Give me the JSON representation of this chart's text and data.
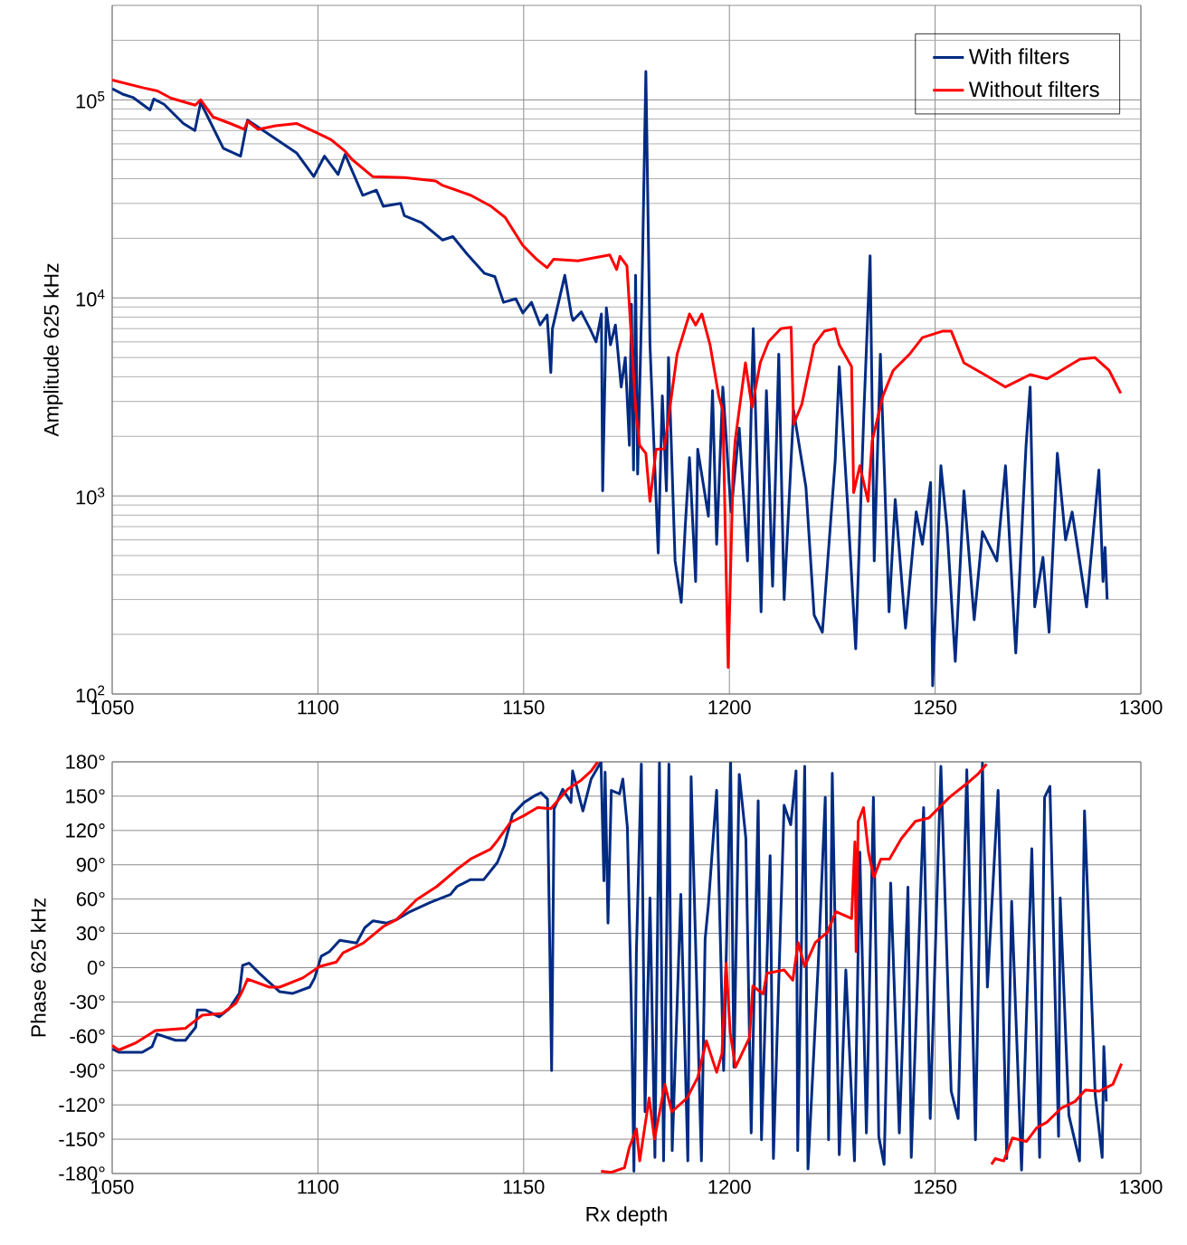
{
  "chart_data": [
    {
      "type": "line",
      "ylabel": "Amplitude 625 kHz",
      "log": "y",
      "grid": true,
      "legend": "top right",
      "xlim": [
        1050,
        1300
      ],
      "xticks": [
        1050,
        1100,
        1150,
        1200,
        1250,
        1300
      ],
      "ylim": [
        100,
        300000
      ],
      "yticks": [
        {
          "value": 100,
          "label": "10$^{2}$"
        },
        {
          "value": 1000,
          "label": "10$^{3}$"
        },
        {
          "value": 10000,
          "label": "10$^{4}$"
        },
        {
          "value": 100000,
          "label": "10$^{5}$"
        }
      ],
      "series": [
        {
          "name": "With filters",
          "color": "#002b82",
          "x": [
            1050,
            1052.5,
            1055,
            1059.2,
            1060.1,
            1062.6,
            1067.3,
            1070.1,
            1071.5,
            1077,
            1081.2,
            1082.9,
            1087.2,
            1094.8,
            1099,
            1101.6,
            1104.9,
            1106.6,
            1110.9,
            1114.2,
            1115.9,
            1120.1,
            1121,
            1125.2,
            1130.3,
            1132.8,
            1136.2,
            1140.5,
            1143,
            1145.1,
            1148.1,
            1149.8,
            1151.9,
            1154,
            1155.7,
            1156.6,
            1157,
            1160,
            1161.6,
            1162,
            1164,
            1166.1,
            1167.6,
            1168.9,
            1169.2,
            1170.1,
            1171.1,
            1172.3,
            1173.7,
            1174.7,
            1175.7,
            1176.2,
            1176.7,
            1177.2,
            1177.7,
            1178.7,
            1179.7,
            1180.7,
            1182.7,
            1183.7,
            1184.7,
            1185.2,
            1186.8,
            1188.3,
            1189.3,
            1190.3,
            1191.8,
            1192.3,
            1194.9,
            1195.9,
            1196.9,
            1198.4,
            1200.4,
            1202.4,
            1204.4,
            1205.8,
            1207.7,
            1209,
            1210.5,
            1212,
            1213.3,
            1215.6,
            1218.6,
            1220.6,
            1222.6,
            1225.7,
            1226.7,
            1228.7,
            1230.7,
            1232.7,
            1234.2,
            1235.2,
            1236.7,
            1238.8,
            1240.3,
            1242.8,
            1245.4,
            1246.9,
            1248.9,
            1249.4,
            1251.4,
            1252.9,
            1254.9,
            1257,
            1259.5,
            1261.5,
            1265,
            1267.1,
            1269.6,
            1272.1,
            1273.1,
            1274.2,
            1276.2,
            1277.7,
            1279.7,
            1281.7,
            1283.3,
            1286.8,
            1289.8,
            1290.8,
            1291.3,
            1291.8
          ],
          "values": [
            113700,
            107000,
            103000,
            89000,
            101000,
            95000,
            76000,
            70000,
            97000,
            57000,
            52000,
            79000,
            69000,
            54000,
            41000,
            52000,
            42000,
            53000,
            33000,
            35000,
            29000,
            30000,
            26000,
            24000,
            19600,
            20400,
            16700,
            13300,
            12800,
            9500,
            9900,
            8400,
            9500,
            7300,
            8200,
            4200,
            7000,
            13000,
            8200,
            7700,
            8500,
            7000,
            6000,
            8300,
            1060,
            8900,
            5800,
            7300,
            3550,
            5000,
            1800,
            9300,
            1350,
            13000,
            1290,
            9300,
            139000,
            5800,
            515,
            3200,
            1060,
            5000,
            470,
            290,
            720,
            1560,
            370,
            1720,
            790,
            3400,
            570,
            3550,
            830,
            2200,
            470,
            7000,
            260,
            3400,
            350,
            5200,
            300,
            2700,
            1110,
            250,
            205,
            1490,
            4500,
            920,
            169,
            2700,
            16300,
            470,
            5200,
            260,
            960,
            215,
            830,
            570,
            1170,
            110,
            1420,
            690,
            146,
            1060,
            237,
            660,
            470,
            1420,
            161,
            1800,
            3550,
            275,
            490,
            205,
            1640,
            600,
            830,
            275,
            1350,
            370,
            550,
            300
          ]
        },
        {
          "name": "Without filters",
          "color": "#ff0000",
          "x": [
            1050,
            1057.6,
            1061,
            1064.3,
            1070.2,
            1071.5,
            1074.5,
            1078.7,
            1082.1,
            1082.9,
            1085.5,
            1089.7,
            1094.8,
            1099.9,
            1103.2,
            1106.6,
            1108.3,
            1113.3,
            1121,
            1128.6,
            1130.3,
            1137.1,
            1142.1,
            1145.5,
            1149.8,
            1153.1,
            1155.7,
            1157.3,
            1163.2,
            1170.9,
            1172.6,
            1173.4,
            1175.1,
            1177.2,
            1178.2,
            1179.7,
            1180.7,
            1182.2,
            1184.2,
            1187.3,
            1190.3,
            1191.8,
            1193.3,
            1195.3,
            1197.4,
            1198.4,
            1199.7,
            1200.9,
            1201.4,
            1203.9,
            1205.5,
            1207.5,
            1209.5,
            1212.5,
            1215,
            1215.6,
            1217.6,
            1220.6,
            1223.1,
            1225.7,
            1226.7,
            1229.7,
            1230.2,
            1231.7,
            1233.7,
            1234.7,
            1237.3,
            1239.8,
            1243.8,
            1246.9,
            1251.9,
            1253.9,
            1257,
            1262,
            1267.1,
            1273.1,
            1277.2,
            1285.2,
            1288.8,
            1292.3,
            1295.1
          ],
          "values": [
            126000,
            115000,
            111000,
            102000,
            94000,
            100000,
            82000,
            76000,
            71000,
            78000,
            71000,
            74000,
            76000,
            68000,
            63000,
            55000,
            50000,
            41000,
            40500,
            39000,
            37000,
            33000,
            29000,
            25500,
            18400,
            15700,
            14200,
            15700,
            15400,
            16500,
            13900,
            16200,
            14500,
            2800,
            1800,
            1640,
            940,
            1720,
            1730,
            5200,
            8300,
            7300,
            8300,
            5800,
            3200,
            2700,
            136,
            1350,
            1900,
            4700,
            2800,
            4700,
            6000,
            7000,
            7100,
            2300,
            2900,
            5800,
            6800,
            7000,
            5800,
            4500,
            1040,
            1420,
            940,
            1900,
            3200,
            4300,
            5200,
            6300,
            6800,
            6800,
            4700,
            4100,
            3550,
            4100,
            3900,
            4900,
            5000,
            4300,
            3300
          ]
        }
      ]
    },
    {
      "type": "line",
      "xlabel": "Rx depth",
      "ylabel": "Phase 625 kHz",
      "grid": true,
      "xlim": [
        1050,
        1300
      ],
      "xticks": [
        1050,
        1100,
        1150,
        1200,
        1250,
        1300
      ],
      "ylim": [
        -180,
        180
      ],
      "yticks": [
        {
          "value": -180,
          "label": "-180°"
        },
        {
          "value": -150,
          "label": "-150°"
        },
        {
          "value": -120,
          "label": "-120°"
        },
        {
          "value": -90,
          "label": "-90°"
        },
        {
          "value": -60,
          "label": "-60°"
        },
        {
          "value": -30,
          "label": "-30°"
        },
        {
          "value": 0,
          "label": "0°"
        },
        {
          "value": 30,
          "label": "30°"
        },
        {
          "value": 60,
          "label": "60°"
        },
        {
          "value": 90,
          "label": "90°"
        },
        {
          "value": 120,
          "label": "120°"
        },
        {
          "value": 150,
          "label": "150°"
        },
        {
          "value": 180,
          "label": "180°"
        }
      ],
      "series": [
        {
          "color": "#002b82",
          "x": [
            1050,
            1051.6,
            1057.3,
            1059.7,
            1060.9,
            1065.4,
            1067.8,
            1070.3,
            1070.7,
            1072.7,
            1076,
            1078.4,
            1080.9,
            1081.7,
            1083.3,
            1085.8,
            1090.7,
            1093.9,
            1098,
            1099.2,
            1100.8,
            1102.8,
            1105.3,
            1109.4,
            1111.4,
            1113.4,
            1116.7,
            1119.1,
            1122.4,
            1127.3,
            1132.2,
            1133.8,
            1137.1,
            1140.3,
            1143.6,
            1145.2,
            1147.3,
            1150.1,
            1152.5,
            1154.2,
            1155.8,
            1156.8,
            1157.4,
            1159.5,
            1161.5,
            1161.9,
            1164.4,
            1166.4,
            1168.8,
            1169.5,
            1169.8,
            1170.5,
            1171.3,
            1173.3,
            1174.1,
            1175.2,
            1176.2,
            1176.8,
            1177.4,
            1178.6,
            1179.5,
            1180.7,
            1181.9,
            1183,
            1184,
            1185.3,
            1186.1,
            1188.2,
            1189.9,
            1190.7,
            1193.2,
            1194.1,
            1194.9,
            1196.9,
            1198.6,
            1200.3,
            1201.1,
            1202.4,
            1204,
            1205.3,
            1207,
            1207.8,
            1209.9,
            1210.7,
            1213.3,
            1214.9,
            1216.2,
            1216.6,
            1218.3,
            1219.1,
            1221.6,
            1223.3,
            1224.1,
            1225,
            1226.7,
            1228.3,
            1230.4,
            1231.7,
            1233.3,
            1235,
            1236.3,
            1237.6,
            1239.2,
            1241.3,
            1243.4,
            1244.2,
            1247.2,
            1248.8,
            1251.4,
            1253.9,
            1255.6,
            1257.7,
            1259.8,
            1261.5,
            1262.7,
            1265.3,
            1267.4,
            1268.6,
            1271,
            1273.5,
            1275.4,
            1276.6,
            1277.9,
            1280,
            1280.4,
            1282.5,
            1285.1,
            1286.3,
            1288.9,
            1290.6,
            1291,
            1291.6
          ],
          "values": [
            -71,
            -74,
            -74,
            -69,
            -58,
            -63.5,
            -63.5,
            -52,
            -37,
            -37,
            -43,
            -36,
            -22.5,
            2,
            4,
            -5,
            -21,
            -22.5,
            -17,
            -9,
            10,
            14,
            24,
            21.5,
            35,
            41,
            39,
            42,
            49,
            57,
            64,
            71,
            77,
            77,
            92,
            106,
            134,
            144.5,
            150,
            153,
            147.5,
            -90,
            139,
            156,
            144.5,
            172,
            137,
            165,
            180,
            76,
            171,
            39,
            155,
            152,
            165,
            123,
            -37,
            -178,
            14,
            178,
            -126,
            61,
            -166,
            179,
            -169,
            178,
            -160,
            64,
            -169,
            167,
            -169,
            25,
            55,
            155,
            -90,
            179,
            -87,
            169,
            113,
            -144.5,
            146,
            -150.5,
            98,
            -167,
            142,
            125,
            172,
            -160,
            176,
            -176,
            4,
            149,
            -150.5,
            170,
            -163.5,
            -2,
            -169,
            101,
            -144.5,
            149,
            -147.5,
            -172,
            74,
            -144.5,
            70.5,
            -166,
            140,
            -132,
            176,
            -108,
            -132,
            173,
            -150.5,
            179,
            -17,
            155,
            -167,
            58,
            -177,
            104,
            -166,
            149,
            158.5,
            -147.5,
            61,
            -129,
            -169,
            137,
            -111,
            -166,
            -69,
            -117
          ]
        },
        {
          "color": "#ff0000",
          "x": [
            1050,
            1051.6,
            1055.6,
            1060.5,
            1067.8,
            1070.3,
            1071.9,
            1076.8,
            1080.1,
            1081.7,
            1082.9,
            1088.2,
            1090.7,
            1096.3,
            1100.4,
            1104.5,
            1106.1,
            1111,
            1115.9,
            1119.1,
            1124,
            1128.9,
            1133.8,
            1137.1,
            1141.9,
            1143.6,
            1146.8,
            1150.1,
            1153.4,
            1156.6,
            1160.7,
            1164,
            1166.4,
            1168,
            1168.4,
            1168.8,
            1171.3,
            1174.5,
            1175.7,
            1177.4,
            1178.2,
            1180.5,
            1181.8,
            1184.3,
            1186,
            1189.7,
            1192.3,
            1194.4,
            1196.9,
            1198.2,
            1199.2,
            1200.2,
            1201.5,
            1204.9,
            1205.7,
            1208.2,
            1209.1,
            1213.3,
            1215.4,
            1216.7,
            1218.3,
            1220.9,
            1223.8,
            1225.9,
            1229.7,
            1230.5,
            1230.8,
            1231.3,
            1232.6,
            1233.8,
            1235.1,
            1236.8,
            1238.9,
            1241.8,
            1245.2,
            1248.5,
            1251,
            1253.5,
            1257.7,
            1260.3,
            1262.5,
            1263.1,
            1263.7,
            1264.6,
            1266.7,
            1268.8,
            1272.2,
            1274.7,
            1277.2,
            1280.6,
            1284,
            1286.5,
            1289.9,
            1293.2,
            1295.3
          ],
          "values": [
            -68,
            -72,
            -66,
            -55,
            -53,
            -46,
            -41.5,
            -40,
            -31,
            -20,
            -10,
            -17,
            -17,
            -9,
            1,
            5,
            13,
            21.5,
            36,
            42,
            59.5,
            71,
            86,
            95,
            103.5,
            111,
            127,
            133,
            140,
            139,
            156,
            164,
            172,
            180,
            null,
            -178,
            -179,
            -175,
            -157,
            -141,
            -169,
            -114,
            -150,
            -102,
            -126,
            -114,
            -96,
            -64,
            -91.5,
            -75,
            4,
            -57,
            -87,
            -61,
            -16,
            -23,
            -5,
            -2,
            -11,
            22,
            1,
            22,
            31,
            49,
            43,
            110,
            14,
            128,
            140,
            101,
            79,
            95,
            95,
            113,
            128,
            131,
            140,
            149,
            161,
            169,
            178,
            null,
            -172,
            -167,
            -169,
            -149,
            -152,
            -140,
            -135,
            -123,
            -117,
            -107,
            -108,
            -102,
            -84
          ]
        }
      ]
    }
  ]
}
